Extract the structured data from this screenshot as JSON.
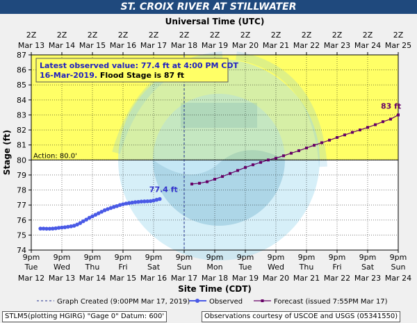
{
  "title": "ST. CROIX RIVER AT STILLWATER",
  "colors": {
    "title_bar": "#1f497d",
    "flood_fill": "#ffff66",
    "plot_fill": "#ffffff",
    "observed": "#4a5ae6",
    "forecast": "#660066",
    "observed_label": "#3333cc",
    "info_text": "#2020c0",
    "noaa_light": "#a8dcf0",
    "noaa_dark": "#1a6f9a"
  },
  "chart_data": {
    "type": "line",
    "title": "ST. CROIX RIVER AT STILLWATER",
    "ylabel": "Stage (ft)",
    "xlabel_bottom": "Site Time (CDT)",
    "xlabel_top": "Universal Time (UTC)",
    "ylim": [
      74,
      87
    ],
    "y_ticks": [
      74,
      75,
      76,
      77,
      78,
      79,
      80,
      81,
      82,
      83,
      84,
      85,
      86,
      87
    ],
    "x_range_cdt": [
      "Mar 12 9pm",
      "Mar 24 9pm"
    ],
    "bottom_ticks": [
      {
        "l1": "9pm",
        "l2": "Tue",
        "l3": "Mar 12"
      },
      {
        "l1": "9pm",
        "l2": "Wed",
        "l3": "Mar 13"
      },
      {
        "l1": "9pm",
        "l2": "Thu",
        "l3": "Mar 14"
      },
      {
        "l1": "9pm",
        "l2": "Fri",
        "l3": "Mar 15"
      },
      {
        "l1": "9pm",
        "l2": "Sat",
        "l3": "Mar 16"
      },
      {
        "l1": "9pm",
        "l2": "Sun",
        "l3": "Mar 17"
      },
      {
        "l1": "9pm",
        "l2": "Mon",
        "l3": "Mar 18"
      },
      {
        "l1": "9pm",
        "l2": "Tue",
        "l3": "Mar 19"
      },
      {
        "l1": "9pm",
        "l2": "Wed",
        "l3": "Mar 20"
      },
      {
        "l1": "9pm",
        "l2": "Thu",
        "l3": "Mar 21"
      },
      {
        "l1": "9pm",
        "l2": "Fri",
        "l3": "Mar 22"
      },
      {
        "l1": "9pm",
        "l2": "Sat",
        "l3": "Mar 23"
      },
      {
        "l1": "9pm",
        "l2": "Sun",
        "l3": "Mar 24"
      }
    ],
    "top_ticks": [
      {
        "l1": "2Z",
        "l2": "Mar 13"
      },
      {
        "l1": "2Z",
        "l2": "Mar 14"
      },
      {
        "l1": "2Z",
        "l2": "Mar 15"
      },
      {
        "l1": "2Z",
        "l2": "Mar 16"
      },
      {
        "l1": "2Z",
        "l2": "Mar 17"
      },
      {
        "l1": "2Z",
        "l2": "Mar 18"
      },
      {
        "l1": "2Z",
        "l2": "Mar 19"
      },
      {
        "l1": "2Z",
        "l2": "Mar 20"
      },
      {
        "l1": "2Z",
        "l2": "Mar 21"
      },
      {
        "l1": "2Z",
        "l2": "Mar 22"
      },
      {
        "l1": "2Z",
        "l2": "Mar 23"
      },
      {
        "l1": "2Z",
        "l2": "Mar 24"
      },
      {
        "l1": "2Z",
        "l2": "Mar 25"
      }
    ],
    "action_stage": 80,
    "action_label": "Action: 80.0'",
    "flood_stage": 87,
    "graph_created_day": 5,
    "latest_observed": {
      "line1": "Latest observed value: 77.4 ft at 4:00 PM CDT",
      "date": "16-Mar-2019",
      "flood_text": "Flood Stage is 87 ft"
    },
    "observed_label": "77.4 ft",
    "forecast_label": "83 ft",
    "series": [
      {
        "name": "Observed",
        "x": [
          0.3,
          0.4,
          0.5,
          0.6,
          0.7,
          0.8,
          0.9,
          1.0,
          1.1,
          1.2,
          1.3,
          1.4,
          1.5,
          1.6,
          1.7,
          1.8,
          1.9,
          2.0,
          2.1,
          2.2,
          2.3,
          2.4,
          2.5,
          2.6,
          2.7,
          2.8,
          2.9,
          3.0,
          3.1,
          3.2,
          3.3,
          3.4,
          3.5,
          3.6,
          3.7,
          3.8,
          3.9,
          4.0,
          4.1,
          4.2
        ],
        "y": [
          75.43,
          75.43,
          75.42,
          75.42,
          75.43,
          75.45,
          75.48,
          75.5,
          75.52,
          75.55,
          75.58,
          75.62,
          75.7,
          75.8,
          75.92,
          76.03,
          76.15,
          76.25,
          76.35,
          76.45,
          76.55,
          76.65,
          76.73,
          76.8,
          76.87,
          76.93,
          77.0,
          77.05,
          77.1,
          77.13,
          77.16,
          77.19,
          77.21,
          77.23,
          77.24,
          77.25,
          77.26,
          77.3,
          77.35,
          77.4
        ]
      },
      {
        "name": "Forecast (issued 7:55PM Mar 17)",
        "x": [
          5.25,
          5.5,
          5.75,
          6.0,
          6.25,
          6.5,
          6.75,
          7.0,
          7.25,
          7.5,
          7.75,
          8.0,
          8.25,
          8.5,
          8.75,
          9.0,
          9.25,
          9.5,
          9.75,
          10.0,
          10.25,
          10.5,
          10.75,
          11.0,
          11.25,
          11.5,
          11.75,
          12.0
        ],
        "y": [
          78.4,
          78.45,
          78.55,
          78.72,
          78.9,
          79.1,
          79.3,
          79.5,
          79.68,
          79.84,
          80.0,
          80.12,
          80.28,
          80.45,
          80.62,
          80.8,
          80.98,
          81.15,
          81.32,
          81.5,
          81.67,
          81.84,
          82.0,
          82.17,
          82.35,
          82.55,
          82.72,
          83.0
        ]
      }
    ],
    "legend": {
      "graph_created": "Graph Created (9:00PM Mar 17, 2019)",
      "observed": "Observed",
      "forecast": "Forecast (issued 7:55PM Mar 17)"
    }
  },
  "footer": {
    "left": "STLM5(plotting HGIRG) \"Gage 0\" Datum: 600'",
    "right": "Observations courtesy of USCOE and USGS (05341550)"
  }
}
